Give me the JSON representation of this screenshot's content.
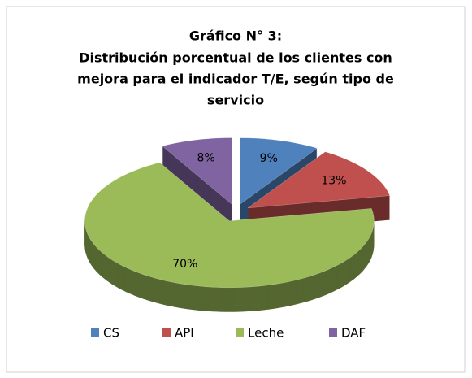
{
  "chart_data": {
    "type": "pie3d",
    "title": "Gráfico N° 3:",
    "subtitle": [
      "Distribución  porcentual de los clientes con",
      "mejora para el indicador T/E, según tipo de",
      "servicio"
    ],
    "categories": [
      "CS",
      "API",
      "Leche",
      "DAF"
    ],
    "values": [
      9,
      13,
      70,
      8
    ],
    "value_labels": [
      "9%",
      "13%",
      "70%",
      "8%"
    ],
    "colors": [
      "#4f81bd",
      "#c0504d",
      "#9bbb59",
      "#8064a2"
    ],
    "legend": "bottom"
  }
}
